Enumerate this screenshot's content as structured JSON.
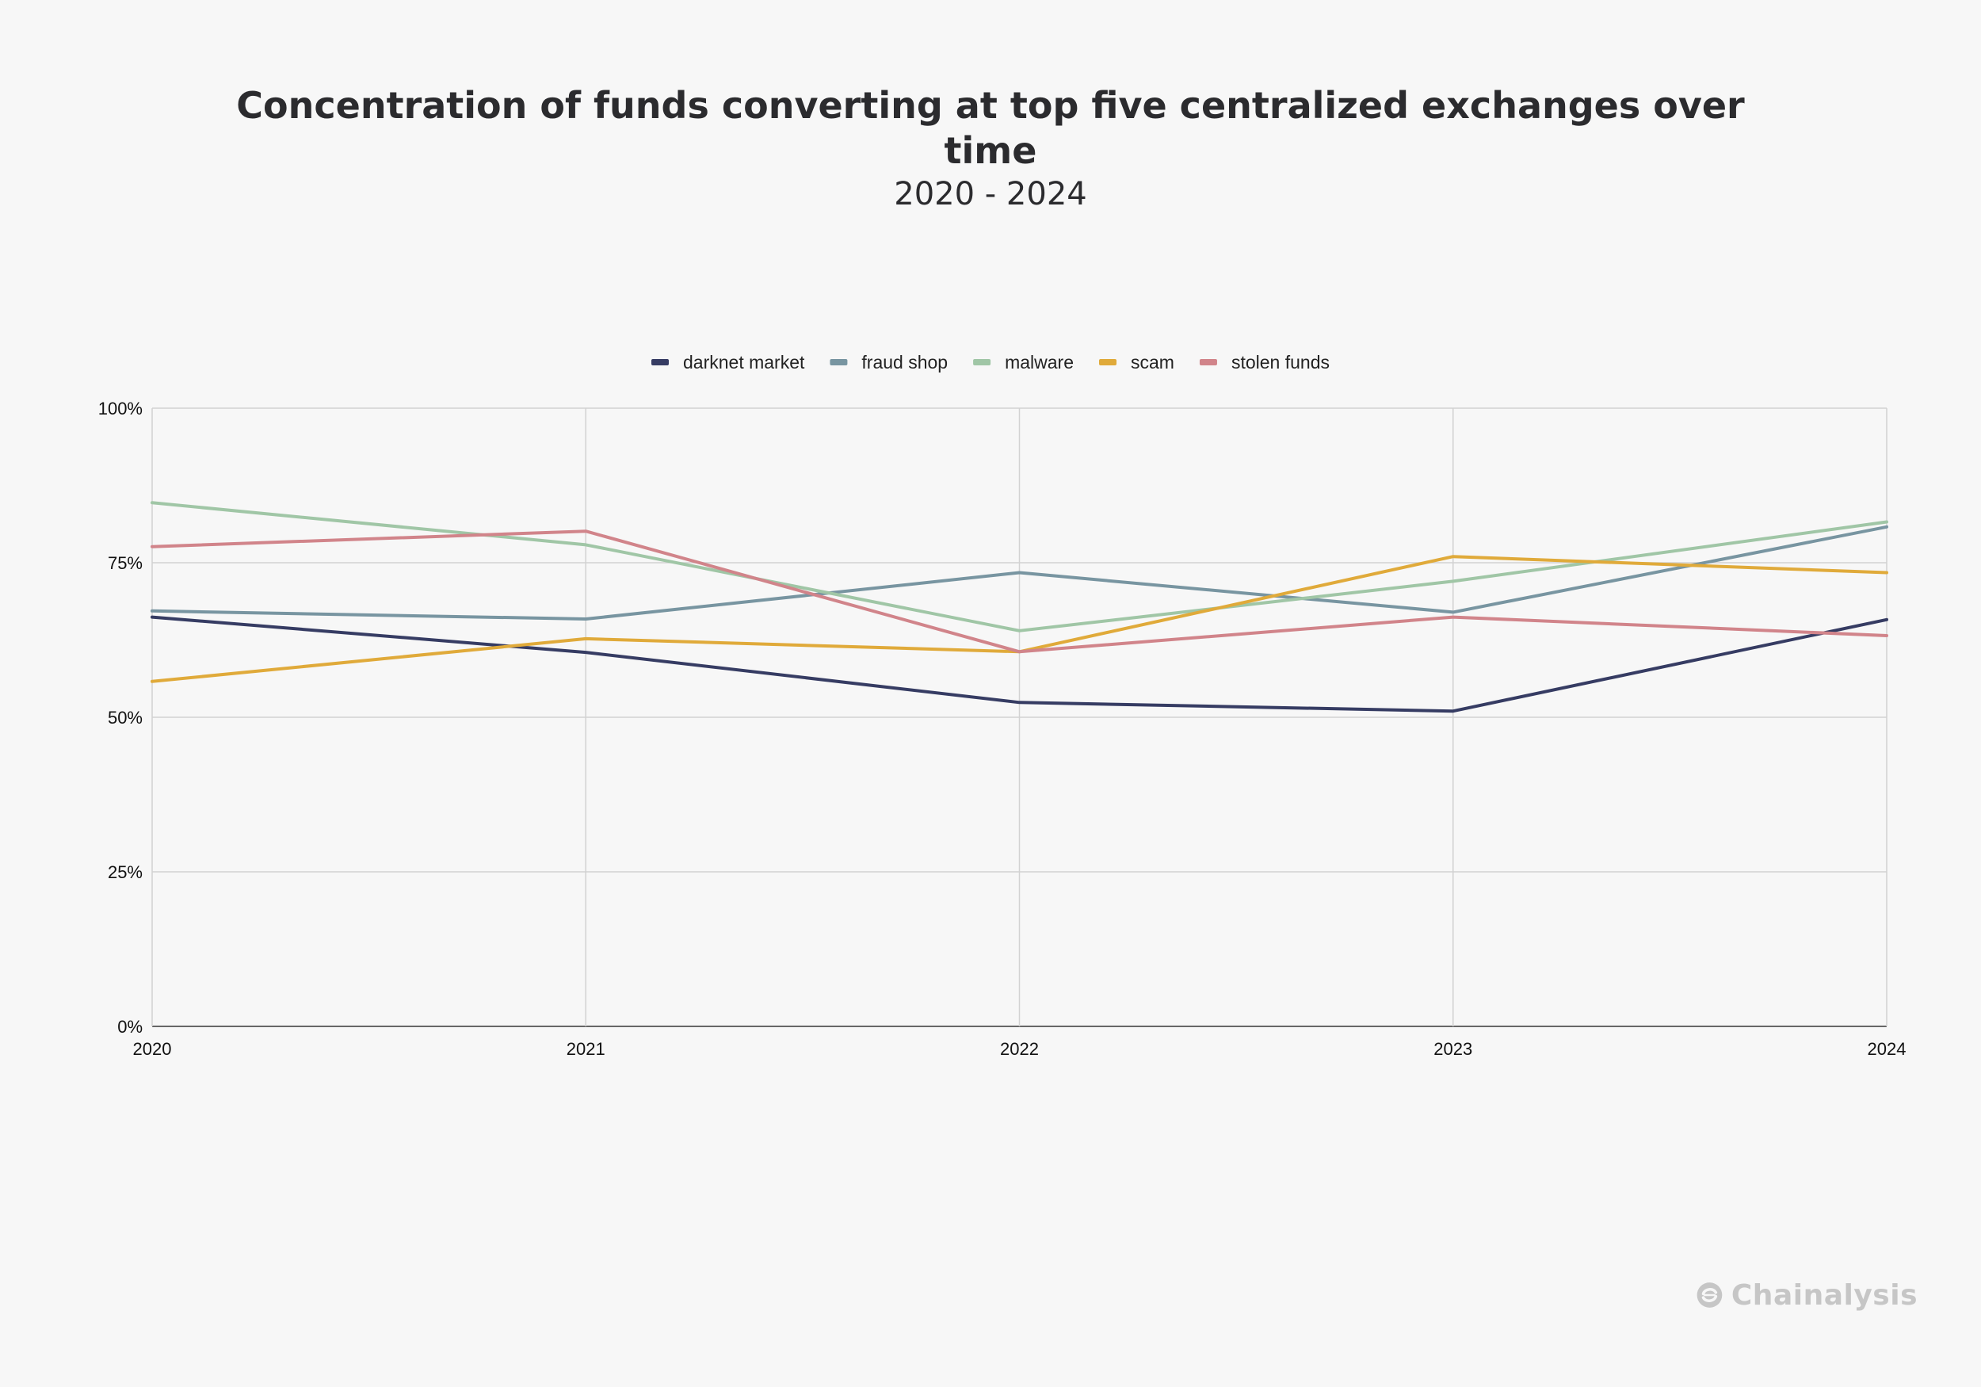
{
  "page": {
    "background": "#f7f7f7"
  },
  "title_line_1": "Concentration of funds converting at top five centralized exchanges over",
  "title_line_2": "time",
  "subtitle": "2020 - 2024",
  "logo": {
    "text": "Chainalysis",
    "icon": "chainalysis-logo-icon"
  },
  "chart_data": {
    "type": "line",
    "title": "Concentration of funds converting at top five centralized exchanges over time",
    "subtitle": "2020 - 2024",
    "xlabel": "",
    "ylabel": "",
    "x": [
      "2020",
      "2021",
      "2022",
      "2023",
      "2024"
    ],
    "ylim": [
      0,
      100
    ],
    "yticks": [
      0,
      25,
      50,
      75,
      100
    ],
    "ytick_labels": [
      "0%",
      "25%",
      "50%",
      "75%",
      "100%"
    ],
    "grid": true,
    "legend_position": "top-center",
    "series": [
      {
        "name": "darknet market",
        "color": "#363c63",
        "values": [
          66.2,
          60.5,
          52.4,
          51.0,
          65.8
        ]
      },
      {
        "name": "fraud shop",
        "color": "#7895a1",
        "values": [
          67.2,
          65.9,
          73.4,
          67.0,
          80.8
        ]
      },
      {
        "name": "malware",
        "color": "#a0c6a6",
        "values": [
          84.7,
          77.9,
          64.0,
          72.0,
          81.6
        ]
      },
      {
        "name": "scam",
        "color": "#e0aa3a",
        "values": [
          55.8,
          62.7,
          60.6,
          76.0,
          73.4
        ]
      },
      {
        "name": "stolen funds",
        "color": "#d1848a",
        "values": [
          77.6,
          80.1,
          60.6,
          66.2,
          63.2
        ]
      }
    ]
  }
}
